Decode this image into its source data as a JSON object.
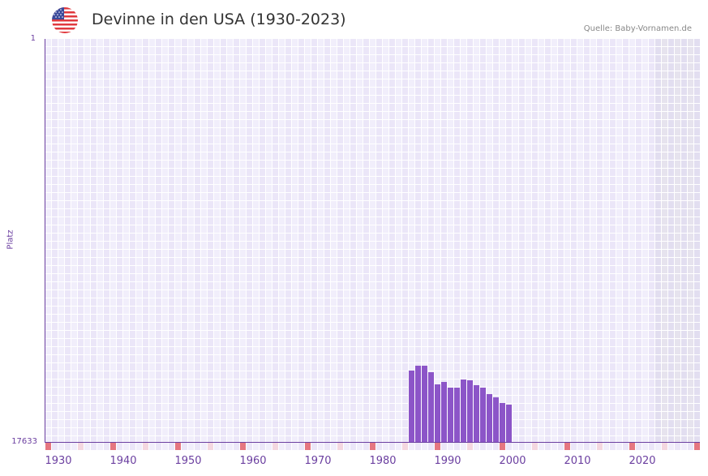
{
  "header": {
    "title": "Devinne in den USA (1930-2023)",
    "source": "Quelle: Baby-Vornamen.de",
    "flag_icon": "usa-flag-icon"
  },
  "colors": {
    "bar": "#8c55c8",
    "axis": "#6b3fa0",
    "grid_light": "#f1eefb",
    "grid_dark": "#ebe6f8",
    "future_region": "#e2def0",
    "decade_marker": "#e57680",
    "half_decade_marker": "#f4d7e0"
  },
  "chart_data": {
    "type": "bar",
    "title": "Devinne in den USA (1930-2023)",
    "xlabel": "",
    "ylabel": "Platz",
    "y_inverted": true,
    "ylim": [
      1,
      17633
    ],
    "yticks": [
      "1",
      "17633"
    ],
    "xticks": [
      "1930",
      "1940",
      "1950",
      "1960",
      "1970",
      "1980",
      "1990",
      "2000",
      "2010",
      "2020"
    ],
    "x_range": [
      1928,
      2028
    ],
    "grid": true,
    "legend": null,
    "categories": [
      1984,
      1985,
      1986,
      1987,
      1988,
      1989,
      1990,
      1991,
      1992,
      1993,
      1994,
      1995,
      1996,
      1997,
      1998,
      1999
    ],
    "values": [
      14511,
      14298,
      14298,
      14582,
      15114,
      15008,
      15256,
      15256,
      14901,
      14937,
      15150,
      15256,
      15540,
      15682,
      15930,
      16001
    ]
  },
  "axis": {
    "y_label": "Platz",
    "y_top": "1",
    "y_bottom": "17633"
  }
}
